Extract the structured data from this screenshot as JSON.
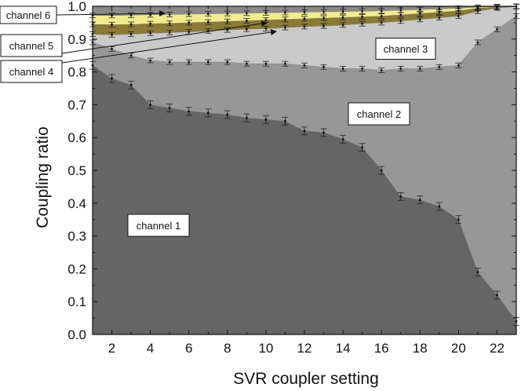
{
  "chart_data": {
    "type": "area",
    "stacked": true,
    "xlabel": "SVR coupler setting",
    "ylabel": "Coupling ratio",
    "xlim": [
      1,
      23
    ],
    "ylim": [
      0.0,
      1.0
    ],
    "xticks": [
      "2",
      "4",
      "6",
      "8",
      "10",
      "12",
      "14",
      "16",
      "18",
      "20",
      "22"
    ],
    "yticks": [
      "0.0",
      "0.1",
      "0.2",
      "0.3",
      "0.4",
      "0.5",
      "0.6",
      "0.7",
      "0.8",
      "0.9",
      "1.0"
    ],
    "x": [
      1,
      2,
      3,
      4,
      5,
      6,
      7,
      8,
      9,
      10,
      11,
      12,
      13,
      14,
      15,
      16,
      17,
      18,
      19,
      20,
      21,
      22,
      23
    ],
    "boundaries": [
      {
        "values": [
          0.82,
          0.78,
          0.76,
          0.7,
          0.69,
          0.68,
          0.675,
          0.67,
          0.66,
          0.655,
          0.65,
          0.62,
          0.615,
          0.595,
          0.57,
          0.5,
          0.42,
          0.41,
          0.39,
          0.35,
          0.19,
          0.12,
          0.04
        ]
      },
      {
        "values": [
          0.89,
          0.87,
          0.85,
          0.835,
          0.83,
          0.83,
          0.83,
          0.83,
          0.825,
          0.825,
          0.825,
          0.82,
          0.815,
          0.81,
          0.81,
          0.805,
          0.81,
          0.81,
          0.815,
          0.82,
          0.89,
          0.93,
          0.97
        ]
      },
      {
        "values": [
          0.915,
          0.913,
          0.915,
          0.918,
          0.92,
          0.922,
          0.925,
          0.928,
          0.93,
          0.932,
          0.935,
          0.938,
          0.94,
          0.943,
          0.947,
          0.95,
          0.955,
          0.96,
          0.965,
          0.97,
          0.985,
          0.995,
          0.999
        ]
      },
      {
        "values": [
          0.945,
          0.944,
          0.945,
          0.947,
          0.948,
          0.95,
          0.952,
          0.954,
          0.956,
          0.958,
          0.96,
          0.962,
          0.964,
          0.966,
          0.968,
          0.97,
          0.974,
          0.978,
          0.982,
          0.986,
          0.994,
          0.998,
          1.0
        ]
      },
      {
        "values": [
          0.972,
          0.972,
          0.973,
          0.974,
          0.975,
          0.976,
          0.977,
          0.978,
          0.979,
          0.98,
          0.981,
          0.982,
          0.983,
          0.984,
          0.985,
          0.986,
          0.988,
          0.99,
          0.992,
          0.994,
          0.997,
          0.999,
          1.0
        ]
      }
    ],
    "series": [
      {
        "name": "channel 1",
        "color": "#656565"
      },
      {
        "name": "channel 2",
        "color": "#979797"
      },
      {
        "name": "channel 3",
        "color": "#cacaca"
      },
      {
        "name": "channel 4",
        "color": "#8a7a35"
      },
      {
        "name": "channel 5",
        "color": "#f2ec8e"
      },
      {
        "name": "channel 6",
        "color": "#8a8a8a"
      }
    ],
    "grid": false
  }
}
